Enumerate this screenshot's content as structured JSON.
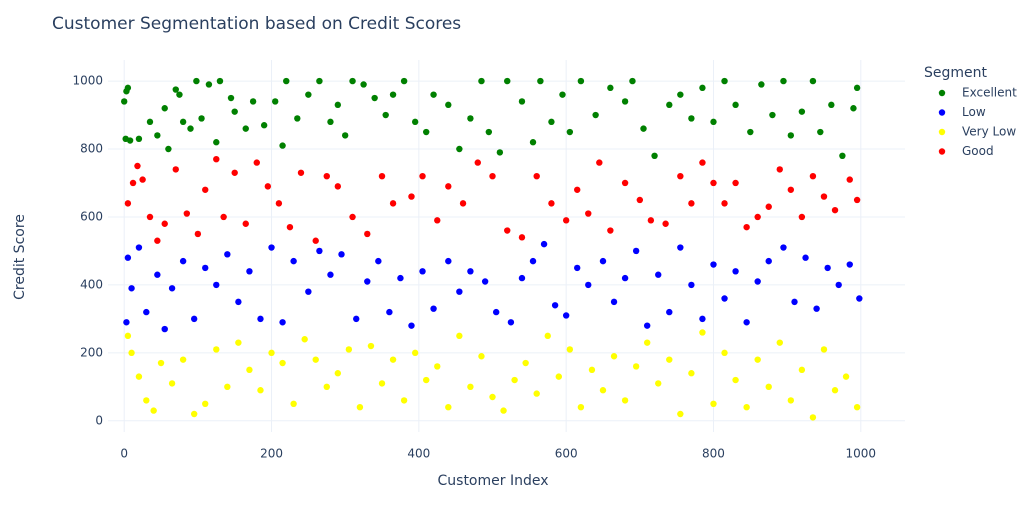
{
  "chart_data": {
    "type": "scatter",
    "title": "Customer Segmentation based on Credit Scores",
    "x_label": "Customer Index",
    "y_label": "Credit Score",
    "legend_title": "Segment",
    "xlim": [
      -22,
      1060
    ],
    "ylim": [
      -33,
      1062
    ],
    "xticks": [
      0,
      200,
      400,
      600,
      800,
      1000
    ],
    "yticks": [
      0,
      200,
      400,
      600,
      800,
      1000
    ],
    "grid": true,
    "legend": "right",
    "series": [
      {
        "name": "Excellent",
        "color": "green",
        "x": [
          0,
          3,
          5,
          2,
          8,
          20,
          35,
          45,
          55,
          60,
          70,
          75,
          80,
          90,
          98,
          105,
          115,
          125,
          130,
          145,
          150,
          165,
          175,
          190,
          205,
          215,
          220,
          235,
          250,
          265,
          280,
          290,
          300,
          310,
          325,
          340,
          355,
          365,
          380,
          395,
          410,
          420,
          440,
          455,
          470,
          485,
          495,
          510,
          520,
          540,
          555,
          565,
          580,
          595,
          605,
          620,
          640,
          660,
          680,
          690,
          705,
          720,
          740,
          755,
          770,
          785,
          800,
          815,
          830,
          850,
          865,
          880,
          895,
          905,
          920,
          935,
          945,
          960,
          975,
          990,
          995
        ],
        "values": [
          940,
          970,
          980,
          830,
          825,
          830,
          880,
          840,
          920,
          800,
          975,
          960,
          880,
          860,
          1000,
          890,
          990,
          820,
          1000,
          950,
          910,
          860,
          940,
          870,
          940,
          810,
          1000,
          890,
          960,
          1000,
          880,
          930,
          840,
          1000,
          990,
          950,
          900,
          960,
          1000,
          880,
          850,
          960,
          930,
          800,
          890,
          1000,
          850,
          790,
          1000,
          940,
          820,
          1000,
          880,
          960,
          850,
          1000,
          900,
          980,
          940,
          1000,
          860,
          780,
          930,
          960,
          890,
          980,
          880,
          1000,
          930,
          850,
          990,
          900,
          1000,
          840,
          910,
          1000,
          850,
          930,
          780,
          920,
          980
        ]
      },
      {
        "name": "Low",
        "color": "blue",
        "x": [
          3,
          5,
          10,
          20,
          30,
          45,
          55,
          65,
          80,
          95,
          110,
          125,
          140,
          155,
          170,
          185,
          200,
          215,
          230,
          250,
          265,
          280,
          295,
          315,
          330,
          345,
          360,
          375,
          390,
          405,
          420,
          440,
          455,
          470,
          490,
          505,
          525,
          540,
          555,
          570,
          585,
          600,
          615,
          630,
          650,
          665,
          680,
          695,
          710,
          725,
          740,
          755,
          770,
          785,
          800,
          815,
          830,
          845,
          860,
          875,
          895,
          910,
          925,
          940,
          955,
          970,
          985,
          998
        ],
        "values": [
          290,
          480,
          390,
          510,
          320,
          430,
          270,
          390,
          470,
          300,
          450,
          400,
          490,
          350,
          440,
          300,
          510,
          290,
          470,
          380,
          500,
          430,
          490,
          300,
          410,
          470,
          320,
          420,
          280,
          440,
          330,
          470,
          380,
          440,
          410,
          320,
          290,
          420,
          470,
          520,
          340,
          310,
          450,
          400,
          470,
          350,
          420,
          500,
          280,
          430,
          320,
          510,
          400,
          300,
          460,
          360,
          440,
          290,
          410,
          470,
          510,
          350,
          480,
          330,
          450,
          400,
          460,
          360
        ]
      },
      {
        "name": "Very Low",
        "color": "yellow",
        "x": [
          5,
          10,
          20,
          30,
          40,
          50,
          65,
          80,
          95,
          110,
          125,
          140,
          155,
          170,
          185,
          200,
          215,
          230,
          245,
          260,
          275,
          290,
          305,
          320,
          335,
          350,
          365,
          380,
          395,
          410,
          425,
          440,
          455,
          470,
          485,
          500,
          515,
          530,
          545,
          560,
          575,
          590,
          605,
          620,
          635,
          650,
          665,
          680,
          695,
          710,
          725,
          740,
          755,
          770,
          785,
          800,
          815,
          830,
          845,
          860,
          875,
          890,
          905,
          920,
          935,
          950,
          965,
          980,
          995
        ],
        "values": [
          250,
          200,
          130,
          60,
          30,
          170,
          110,
          180,
          20,
          50,
          210,
          100,
          230,
          150,
          90,
          200,
          170,
          50,
          240,
          180,
          100,
          140,
          210,
          40,
          220,
          110,
          180,
          60,
          200,
          120,
          160,
          40,
          250,
          100,
          190,
          70,
          30,
          120,
          170,
          80,
          250,
          130,
          210,
          40,
          150,
          90,
          190,
          60,
          160,
          230,
          110,
          180,
          20,
          140,
          260,
          50,
          200,
          120,
          40,
          180,
          100,
          230,
          60,
          150,
          10,
          210,
          90,
          130,
          40
        ]
      },
      {
        "name": "Good",
        "color": "red",
        "x": [
          5,
          12,
          18,
          25,
          35,
          45,
          55,
          70,
          85,
          100,
          110,
          125,
          135,
          150,
          165,
          180,
          195,
          210,
          225,
          240,
          260,
          275,
          290,
          310,
          330,
          350,
          365,
          390,
          405,
          425,
          440,
          460,
          480,
          500,
          520,
          540,
          560,
          580,
          600,
          615,
          630,
          645,
          660,
          680,
          700,
          715,
          735,
          755,
          770,
          785,
          800,
          815,
          830,
          845,
          860,
          875,
          890,
          905,
          920,
          935,
          950,
          965,
          985,
          995
        ],
        "values": [
          640,
          700,
          750,
          710,
          600,
          530,
          580,
          740,
          610,
          550,
          680,
          770,
          600,
          730,
          580,
          760,
          690,
          640,
          570,
          730,
          530,
          720,
          690,
          600,
          550,
          720,
          640,
          660,
          720,
          590,
          690,
          640,
          760,
          720,
          560,
          540,
          720,
          640,
          590,
          680,
          610,
          760,
          560,
          700,
          650,
          590,
          580,
          720,
          640,
          760,
          700,
          640,
          700,
          570,
          600,
          630,
          740,
          680,
          600,
          720,
          660,
          620,
          710,
          650
        ]
      }
    ]
  }
}
